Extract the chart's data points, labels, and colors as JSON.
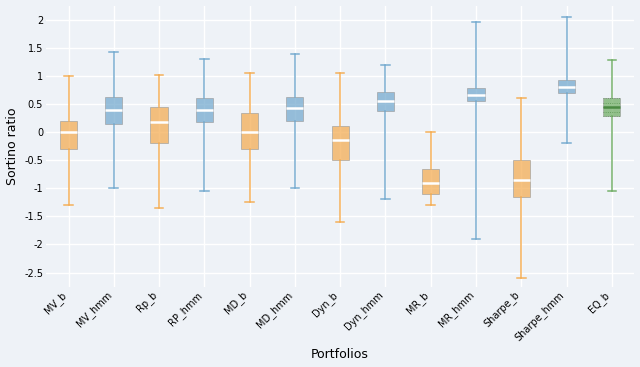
{
  "portfolios": [
    "MV_b",
    "MV_hmm",
    "Rp_b",
    "RP_hmm",
    "MD_b",
    "MD_hmm",
    "Dyn_b",
    "Dyn_hmm",
    "MR_b",
    "MR_hmm",
    "Sharpe_b",
    "Sharpe_hmm",
    "EQ_b"
  ],
  "box_colors": [
    "#f5a94a",
    "#6ea6cd",
    "#f5a94a",
    "#6ea6cd",
    "#f5a94a",
    "#6ea6cd",
    "#f5a94a",
    "#6ea6cd",
    "#f5a94a",
    "#6ea6cd",
    "#f5a94a",
    "#6ea6cd",
    "#6aaa5e"
  ],
  "stats": [
    {
      "whislo": -1.3,
      "q1": -0.3,
      "med": 0.0,
      "q3": 0.2,
      "whishi": 1.0
    },
    {
      "whislo": -1.0,
      "q1": 0.15,
      "med": 0.4,
      "q3": 0.62,
      "whishi": 1.42
    },
    {
      "whislo": -1.35,
      "q1": -0.2,
      "med": 0.17,
      "q3": 0.45,
      "whishi": 1.01
    },
    {
      "whislo": -1.05,
      "q1": 0.18,
      "med": 0.4,
      "q3": 0.6,
      "whishi": 1.3
    },
    {
      "whislo": -1.25,
      "q1": -0.3,
      "med": 0.0,
      "q3": 0.33,
      "whishi": 1.05
    },
    {
      "whislo": -1.0,
      "q1": 0.2,
      "med": 0.42,
      "q3": 0.63,
      "whishi": 1.38
    },
    {
      "whislo": -1.6,
      "q1": -0.5,
      "med": -0.15,
      "q3": 0.1,
      "whishi": 1.05
    },
    {
      "whislo": -1.2,
      "q1": 0.38,
      "med": 0.55,
      "q3": 0.72,
      "whishi": 1.2
    },
    {
      "whislo": -1.3,
      "q1": -1.1,
      "med": -0.9,
      "q3": -0.65,
      "whishi": 0.0
    },
    {
      "whislo": -1.9,
      "q1": 0.55,
      "med": 0.65,
      "q3": 0.78,
      "whishi": 1.95
    },
    {
      "whislo": -2.6,
      "q1": -1.15,
      "med": -0.85,
      "q3": -0.5,
      "whishi": 0.6
    },
    {
      "whislo": -0.2,
      "q1": 0.7,
      "med": 0.8,
      "q3": 0.93,
      "whishi": 2.05
    },
    {
      "whislo": -1.05,
      "q1": 0.28,
      "med": 0.45,
      "q3": 0.6,
      "whishi": 1.28
    }
  ],
  "ylabel": "Sortino ratio",
  "xlabel": "Portfolios",
  "ylim": [
    -2.75,
    2.25
  ],
  "yticks": [
    -2.5,
    -2.0,
    -1.5,
    -1.0,
    -0.5,
    0.0,
    0.5,
    1.0,
    1.5,
    2.0
  ],
  "bg_color": "#eef2f7",
  "grid_color": "#ffffff",
  "fig_facecolor": "#eef2f7",
  "box_width": 0.38,
  "xlabel_fontsize": 9,
  "ylabel_fontsize": 9,
  "tick_fontsize": 7,
  "fig_width": 6.4,
  "fig_height": 3.67,
  "dpi": 100
}
